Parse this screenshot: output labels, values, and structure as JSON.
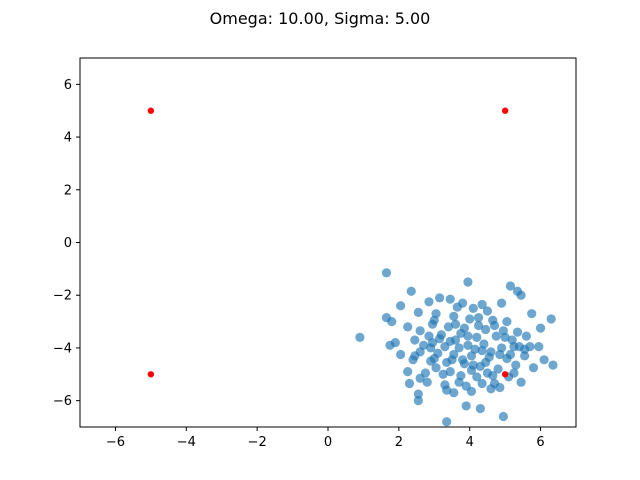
{
  "chart_data": {
    "type": "scatter",
    "title": "Omega: 10.00, Sigma: 5.00",
    "xlabel": "",
    "ylabel": "",
    "xlim": [
      -7,
      7
    ],
    "ylim": [
      -7,
      7
    ],
    "xticks": [
      -6,
      -4,
      -2,
      0,
      2,
      4,
      6
    ],
    "yticks": [
      -6,
      -4,
      -2,
      0,
      2,
      4,
      6
    ],
    "grid": false,
    "series": [
      {
        "marker": "circle",
        "color": "#1f77b4",
        "alpha": 0.65,
        "points": [
          [
            1.65,
            -1.15
          ],
          [
            2.35,
            -1.85
          ],
          [
            3.95,
            -1.5
          ],
          [
            5.15,
            -1.65
          ],
          [
            5.35,
            -1.85
          ],
          [
            3.15,
            -2.1
          ],
          [
            3.45,
            -2.15
          ],
          [
            2.85,
            -2.25
          ],
          [
            3.8,
            -2.3
          ],
          [
            4.35,
            -2.35
          ],
          [
            4.9,
            -2.3
          ],
          [
            5.45,
            -2.0
          ],
          [
            2.05,
            -2.4
          ],
          [
            3.65,
            -2.45
          ],
          [
            4.1,
            -2.5
          ],
          [
            2.55,
            -2.65
          ],
          [
            3.05,
            -2.7
          ],
          [
            3.55,
            -2.8
          ],
          [
            4.25,
            -2.85
          ],
          [
            4.65,
            -2.95
          ],
          [
            5.05,
            -3.0
          ],
          [
            5.75,
            -2.7
          ],
          [
            6.3,
            -2.9
          ],
          [
            1.65,
            -2.85
          ],
          [
            2.25,
            -3.2
          ],
          [
            2.95,
            -3.1
          ],
          [
            3.4,
            -3.2
          ],
          [
            3.85,
            -3.25
          ],
          [
            4.45,
            -3.3
          ],
          [
            5.35,
            -3.4
          ],
          [
            6.0,
            -3.25
          ],
          [
            1.8,
            -3.0
          ],
          [
            2.6,
            -3.35
          ],
          [
            3.2,
            -3.5
          ],
          [
            3.75,
            -3.45
          ],
          [
            4.2,
            -3.6
          ],
          [
            4.75,
            -3.55
          ],
          [
            5.2,
            -3.7
          ],
          [
            5.7,
            -3.95
          ],
          [
            0.9,
            -3.6
          ],
          [
            1.9,
            -3.8
          ],
          [
            2.45,
            -3.7
          ],
          [
            2.95,
            -3.8
          ],
          [
            3.45,
            -3.75
          ],
          [
            3.95,
            -3.9
          ],
          [
            4.4,
            -3.85
          ],
          [
            4.9,
            -4.0
          ],
          [
            5.4,
            -3.95
          ],
          [
            5.95,
            -3.95
          ],
          [
            1.75,
            -3.9
          ],
          [
            2.05,
            -4.25
          ],
          [
            2.6,
            -4.15
          ],
          [
            3.1,
            -4.2
          ],
          [
            3.55,
            -4.25
          ],
          [
            4.05,
            -4.3
          ],
          [
            4.55,
            -4.35
          ],
          [
            5.05,
            -4.4
          ],
          [
            5.55,
            -4.3
          ],
          [
            6.1,
            -4.45
          ],
          [
            6.35,
            -4.65
          ],
          [
            2.4,
            -4.45
          ],
          [
            2.9,
            -4.5
          ],
          [
            3.35,
            -4.55
          ],
          [
            3.85,
            -4.6
          ],
          [
            4.3,
            -4.7
          ],
          [
            4.8,
            -4.8
          ],
          [
            5.3,
            -4.65
          ],
          [
            5.8,
            -4.75
          ],
          [
            2.25,
            -4.9
          ],
          [
            2.75,
            -4.95
          ],
          [
            3.25,
            -5.0
          ],
          [
            3.75,
            -5.05
          ],
          [
            4.2,
            -5.1
          ],
          [
            4.65,
            -5.05
          ],
          [
            5.1,
            -5.1
          ],
          [
            2.3,
            -5.35
          ],
          [
            2.8,
            -5.3
          ],
          [
            3.3,
            -5.4
          ],
          [
            3.9,
            -5.45
          ],
          [
            4.35,
            -5.35
          ],
          [
            4.85,
            -5.5
          ],
          [
            5.45,
            -5.3
          ],
          [
            2.55,
            -5.75
          ],
          [
            3.35,
            -5.6
          ],
          [
            4.05,
            -5.65
          ],
          [
            4.6,
            -5.55
          ],
          [
            2.55,
            -6.0
          ],
          [
            3.9,
            -6.2
          ],
          [
            4.3,
            -6.3
          ],
          [
            4.95,
            -6.6
          ],
          [
            3.35,
            -6.8
          ],
          [
            4.0,
            -2.9
          ],
          [
            3.0,
            -2.95
          ],
          [
            4.7,
            -3.15
          ],
          [
            5.6,
            -3.55
          ],
          [
            3.7,
            -4.0
          ],
          [
            4.15,
            -4.05
          ],
          [
            4.6,
            -4.15
          ],
          [
            3.5,
            -4.45
          ],
          [
            4.45,
            -4.55
          ],
          [
            3.05,
            -4.75
          ],
          [
            4.05,
            -4.85
          ],
          [
            5.15,
            -4.25
          ],
          [
            2.7,
            -3.9
          ],
          [
            3.3,
            -3.95
          ],
          [
            5.0,
            -3.6
          ],
          [
            4.5,
            -2.6
          ],
          [
            3.6,
            -3.1
          ],
          [
            3.95,
            -3.55
          ],
          [
            4.85,
            -4.25
          ],
          [
            3.45,
            -4.9
          ],
          [
            2.9,
            -4.0
          ],
          [
            3.7,
            -5.3
          ],
          [
            4.5,
            -4.95
          ],
          [
            5.25,
            -4.95
          ],
          [
            2.6,
            -5.15
          ],
          [
            4.25,
            -3.15
          ],
          [
            3.15,
            -3.65
          ],
          [
            3.8,
            -4.45
          ],
          [
            4.95,
            -3.35
          ],
          [
            5.55,
            -4.05
          ],
          [
            2.45,
            -4.3
          ],
          [
            3.6,
            -3.7
          ],
          [
            4.35,
            -4.1
          ],
          [
            3.0,
            -4.4
          ],
          [
            4.1,
            -4.65
          ],
          [
            3.55,
            -5.7
          ],
          [
            4.7,
            -5.35
          ],
          [
            5.25,
            -3.95
          ],
          [
            2.85,
            -3.55
          ]
        ]
      },
      {
        "marker": "circle",
        "color": "#ff0000",
        "alpha": 1.0,
        "points": [
          [
            -5,
            5
          ],
          [
            5,
            5
          ],
          [
            -5,
            -5
          ],
          [
            5,
            -5
          ]
        ]
      }
    ]
  }
}
